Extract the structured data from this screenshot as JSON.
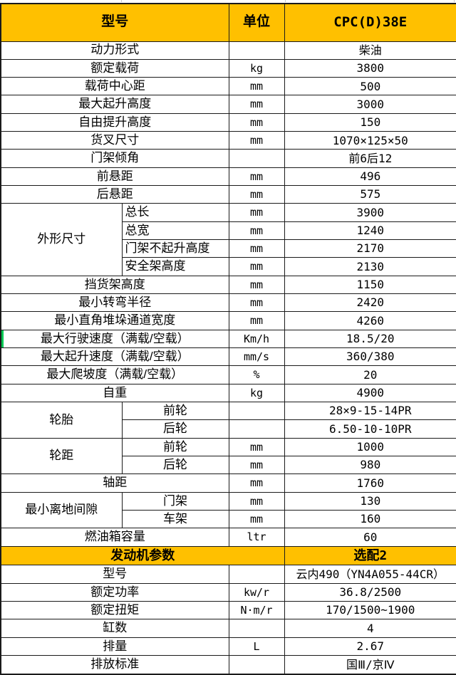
{
  "colors": {
    "header_bg": "#FFC000",
    "border": "#1a1a1a",
    "green_accent": "#00C853",
    "gridline": "#C8C8C8"
  },
  "header": {
    "col_model": "型号",
    "col_unit": "单位",
    "col_value": "CPC(D)38E"
  },
  "rows": [
    {
      "label": "动力形式",
      "unit": "",
      "value": "柴油"
    },
    {
      "label": "额定载荷",
      "unit": "kg",
      "value": "3800"
    },
    {
      "label": "载荷中心距",
      "unit": "mm",
      "value": "500"
    },
    {
      "label": "最大起升高度",
      "unit": "mm",
      "value": "3000"
    },
    {
      "label": "自由提升高度",
      "unit": "mm",
      "value": "150"
    },
    {
      "label": "货叉尺寸",
      "unit": "mm",
      "value": "1070×125×50"
    },
    {
      "label": "门架倾角",
      "unit": "",
      "value": "前6后12"
    },
    {
      "label": "前悬距",
      "unit": "mm",
      "value": "496"
    },
    {
      "label": "后悬距",
      "unit": "mm",
      "value": "575"
    },
    {
      "group": "外形尺寸",
      "group_span": 4,
      "sub": "总长",
      "sub_align": "left",
      "unit": "mm",
      "value": "3900"
    },
    {
      "sub": "总宽",
      "sub_align": "left",
      "unit": "mm",
      "value": "1240"
    },
    {
      "sub": "门架不起升高度",
      "sub_align": "left",
      "unit": "mm",
      "value": "2170"
    },
    {
      "sub": "安全架高度",
      "sub_align": "left",
      "unit": "mm",
      "value": "2130"
    },
    {
      "label": "挡货架高度",
      "unit": "mm",
      "value": "1150"
    },
    {
      "label": "最小转弯半径",
      "unit": "mm",
      "value": "2420"
    },
    {
      "label": "最小直角堆垛通道宽度",
      "unit": "mm",
      "value": "4260"
    },
    {
      "label": "最大行驶速度（满载/空载）",
      "unit": "Km/h",
      "value": "18.5/20",
      "green_left": true
    },
    {
      "label": "最大起升速度（满载/空载）",
      "unit": "mm/s",
      "value": "360/380"
    },
    {
      "label": "最大爬坡度（满载/空载）",
      "unit": "%",
      "value": "20"
    },
    {
      "label": "自重",
      "unit": "kg",
      "value": "4900"
    },
    {
      "group": "轮胎",
      "group_span": 2,
      "sub": "前轮",
      "sub_align": "center",
      "unit": "",
      "value": "28×9-15-14PR"
    },
    {
      "sub": "后轮",
      "sub_align": "center",
      "unit": "",
      "value": "6.50-10-10PR"
    },
    {
      "group": "轮距",
      "group_span": 2,
      "sub": "前轮",
      "sub_align": "center",
      "unit": "mm",
      "value": "1000"
    },
    {
      "sub": "后轮",
      "sub_align": "center",
      "unit": "mm",
      "value": "980"
    },
    {
      "label": "轴距",
      "unit": "mm",
      "value": "1760"
    },
    {
      "group": "最小离地间隙",
      "group_span": 2,
      "sub": "门架",
      "sub_align": "center",
      "unit": "mm",
      "value": "130"
    },
    {
      "sub": "车架",
      "sub_align": "center",
      "unit": "mm",
      "value": "160"
    },
    {
      "label": "燃油箱容量",
      "unit": "ltr",
      "value": "60"
    },
    {
      "label": "发动机参数",
      "section": true,
      "value": "选配2"
    },
    {
      "label": "型号",
      "unit": "",
      "value": "云内490（YN4A055-44CR）"
    },
    {
      "label": "额定功率",
      "unit": "kw/r",
      "value": "36.8/2500"
    },
    {
      "label": "额定扭矩",
      "unit": "N·m/r",
      "value": "170/1500~1900"
    },
    {
      "label": "缸数",
      "unit": "",
      "value": "4"
    },
    {
      "label": "排量",
      "unit": "L",
      "value": "2.67"
    },
    {
      "label": "排放标准",
      "unit": "",
      "value": "国Ⅲ/京Ⅳ"
    }
  ]
}
